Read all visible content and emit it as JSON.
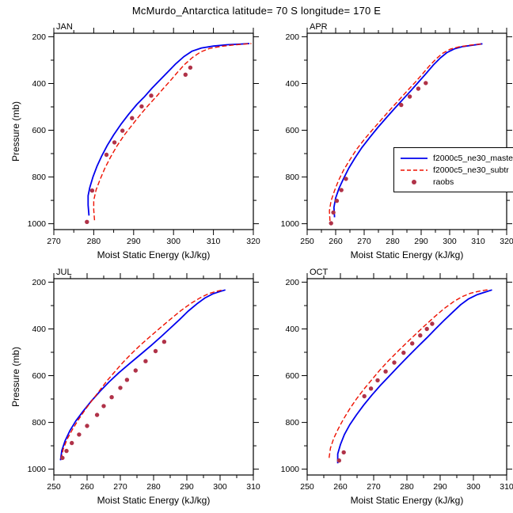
{
  "title": "McMurdo_Antarctica  latitude= 70 S longitude= 170 E",
  "colors": {
    "model_master": "#0000EE",
    "model_subtree": "#EE1100",
    "raobs": "#B03248",
    "axis": "#000000"
  },
  "legend": {
    "entries": [
      {
        "label": "f2000c5_ne30_maste",
        "type": "line",
        "style": "solid",
        "color": "#0000EE"
      },
      {
        "label": "f2000c5_ne30_subtr",
        "type": "line",
        "style": "dashed",
        "color": "#EE1100"
      },
      {
        "label": "raobs",
        "type": "dot",
        "style": "dot",
        "color": "#B03248"
      }
    ]
  },
  "axes": {
    "x_label": "Moist Static Energy (kJ/kg)",
    "y_label": "Pressure (mb)",
    "yticks": [
      200,
      400,
      600,
      800,
      1000
    ],
    "y_minor_step": 100,
    "x_minor_step": 5
  },
  "chart_data": [
    {
      "type": "line",
      "panel": "JAN",
      "xlim": [
        270,
        320
      ],
      "xticks": [
        270,
        280,
        290,
        300,
        310,
        320
      ],
      "series": [
        {
          "name": "f2000c5_ne30_maste",
          "kind": "line",
          "style": "solid",
          "color": "#0000EE",
          "points": [
            [
              278.8,
              965
            ],
            [
              278.6,
              920
            ],
            [
              278.6,
              880
            ],
            [
              279,
              845
            ],
            [
              279.8,
              800
            ],
            [
              280.8,
              755
            ],
            [
              282,
              710
            ],
            [
              283.4,
              665
            ],
            [
              285,
              620
            ],
            [
              286.8,
              575
            ],
            [
              288.8,
              530
            ],
            [
              290.8,
              490
            ],
            [
              292.8,
              455
            ],
            [
              294.6,
              420
            ],
            [
              296.6,
              385
            ],
            [
              298.6,
              350
            ],
            [
              300.6,
              315
            ],
            [
              302.6,
              285
            ],
            [
              304.6,
              262
            ],
            [
              307,
              248
            ],
            [
              310,
              240
            ],
            [
              313.5,
              234
            ],
            [
              317,
              231
            ],
            [
              319,
              229
            ]
          ]
        },
        {
          "name": "f2000c5_ne30_subtr",
          "kind": "line",
          "style": "dashed",
          "color": "#EE1100",
          "points": [
            [
              280.2,
              985
            ],
            [
              280,
              940
            ],
            [
              280,
              900
            ],
            [
              280.6,
              855
            ],
            [
              281.6,
              810
            ],
            [
              282.8,
              762
            ],
            [
              284.2,
              715
            ],
            [
              285.8,
              668
            ],
            [
              287.6,
              622
            ],
            [
              289.6,
              578
            ],
            [
              291.6,
              535
            ],
            [
              293.6,
              495
            ],
            [
              295.6,
              458
            ],
            [
              297.4,
              422
            ],
            [
              299.2,
              388
            ],
            [
              301,
              352
            ],
            [
              302.8,
              318
            ],
            [
              304.8,
              288
            ],
            [
              306.8,
              265
            ],
            [
              309,
              250
            ],
            [
              312,
              241
            ],
            [
              315,
              235
            ],
            [
              318,
              231
            ],
            [
              319.5,
              229
            ]
          ]
        },
        {
          "name": "raobs",
          "kind": "scatter",
          "color": "#B03248",
          "points": [
            [
              278.3,
              992
            ],
            [
              279.6,
              858
            ],
            [
              283.2,
              705
            ],
            [
              285.2,
              652
            ],
            [
              287.2,
              602
            ],
            [
              289.6,
              548
            ],
            [
              292,
              498
            ],
            [
              294.4,
              452
            ],
            [
              303,
              362
            ],
            [
              304.2,
              332
            ]
          ]
        }
      ]
    },
    {
      "type": "line",
      "panel": "APR",
      "xlim": [
        250,
        320
      ],
      "xticks": [
        250,
        260,
        270,
        280,
        290,
        300,
        310,
        320
      ],
      "series": [
        {
          "name": "f2000c5_ne30_maste",
          "kind": "line",
          "style": "solid",
          "color": "#0000EE",
          "points": [
            [
              259.6,
              972
            ],
            [
              259.4,
              930
            ],
            [
              260,
              890
            ],
            [
              261.2,
              848
            ],
            [
              262.8,
              806
            ],
            [
              264.6,
              762
            ],
            [
              266.8,
              718
            ],
            [
              269.2,
              674
            ],
            [
              272,
              630
            ],
            [
              274.8,
              588
            ],
            [
              277.8,
              546
            ],
            [
              280.8,
              505
            ],
            [
              283.8,
              465
            ],
            [
              286.6,
              428
            ],
            [
              289.2,
              392
            ],
            [
              291.8,
              356
            ],
            [
              294.2,
              322
            ],
            [
              296.6,
              292
            ],
            [
              299,
              268
            ],
            [
              301.6,
              252
            ],
            [
              304.6,
              242
            ],
            [
              308,
              236
            ],
            [
              311.5,
              230
            ]
          ]
        },
        {
          "name": "f2000c5_ne30_subtr",
          "kind": "line",
          "style": "dashed",
          "color": "#EE1100",
          "points": [
            [
              258,
              988
            ],
            [
              257.8,
              945
            ],
            [
              258.4,
              902
            ],
            [
              259.6,
              858
            ],
            [
              261,
              815
            ],
            [
              262.8,
              770
            ],
            [
              265,
              726
            ],
            [
              267.4,
              681
            ],
            [
              270.2,
              637
            ],
            [
              273.2,
              594
            ],
            [
              276.2,
              552
            ],
            [
              279.2,
              511
            ],
            [
              282.2,
              471
            ],
            [
              285,
              433
            ],
            [
              287.8,
              396
            ],
            [
              290.4,
              360
            ],
            [
              292.8,
              326
            ],
            [
              295.2,
              295
            ],
            [
              297.6,
              270
            ],
            [
              300.2,
              253
            ],
            [
              303.4,
              243
            ],
            [
              307,
              236
            ],
            [
              311,
              231
            ]
          ]
        },
        {
          "name": "raobs",
          "kind": "scatter",
          "color": "#B03248",
          "points": [
            [
              258.4,
              998
            ],
            [
              259.2,
              952
            ],
            [
              260.4,
              902
            ],
            [
              262,
              856
            ],
            [
              263.6,
              808
            ],
            [
              283,
              492
            ],
            [
              286,
              456
            ],
            [
              289,
              422
            ],
            [
              291.6,
              398
            ]
          ]
        }
      ]
    },
    {
      "type": "line",
      "panel": "JUL",
      "xlim": [
        250,
        310
      ],
      "xticks": [
        250,
        260,
        270,
        280,
        290,
        300,
        310
      ],
      "series": [
        {
          "name": "f2000c5_ne30_maste",
          "kind": "line",
          "style": "solid",
          "color": "#0000EE",
          "points": [
            [
              252,
              962
            ],
            [
              252.4,
              920
            ],
            [
              253.4,
              878
            ],
            [
              254.8,
              836
            ],
            [
              256.6,
              794
            ],
            [
              258.8,
              752
            ],
            [
              261.2,
              710
            ],
            [
              263.8,
              668
            ],
            [
              266.6,
              627
            ],
            [
              269.6,
              587
            ],
            [
              272.8,
              548
            ],
            [
              276,
              510
            ],
            [
              279.2,
              472
            ],
            [
              282.2,
              434
            ],
            [
              285,
              397
            ],
            [
              287.8,
              360
            ],
            [
              290.4,
              324
            ],
            [
              293,
              293
            ],
            [
              295.4,
              268
            ],
            [
              297.8,
              250
            ],
            [
              300,
              240
            ],
            [
              301.6,
              233
            ]
          ]
        },
        {
          "name": "f2000c5_ne30_subtr",
          "kind": "line",
          "style": "dashed",
          "color": "#EE1100",
          "points": [
            [
              252.2,
              958
            ],
            [
              252.8,
              915
            ],
            [
              254,
              872
            ],
            [
              255.6,
              830
            ],
            [
              257.4,
              788
            ],
            [
              259.4,
              746
            ],
            [
              261.6,
              704
            ],
            [
              263.8,
              663
            ],
            [
              266,
              622
            ],
            [
              268.4,
              582
            ],
            [
              270.8,
              543
            ],
            [
              273.4,
              505
            ],
            [
              276.2,
              467
            ],
            [
              279.2,
              430
            ],
            [
              282.2,
              393
            ],
            [
              285.2,
              357
            ],
            [
              288.2,
              322
            ],
            [
              291.2,
              291
            ],
            [
              294,
              267
            ],
            [
              296.6,
              249
            ],
            [
              299,
              239
            ],
            [
              300.8,
              233
            ]
          ]
        },
        {
          "name": "raobs",
          "kind": "scatter",
          "color": "#B03248",
          "points": [
            [
              252.6,
              952
            ],
            [
              253.8,
              922
            ],
            [
              255.4,
              888
            ],
            [
              257.6,
              852
            ],
            [
              260,
              815
            ],
            [
              263,
              768
            ],
            [
              265,
              730
            ],
            [
              267.4,
              692
            ],
            [
              270,
              652
            ],
            [
              272,
              618
            ],
            [
              274.6,
              578
            ],
            [
              277.6,
              538
            ],
            [
              280.6,
              495
            ],
            [
              283.2,
              455
            ]
          ]
        }
      ]
    },
    {
      "type": "line",
      "panel": "OCT",
      "xlim": [
        250,
        310
      ],
      "xticks": [
        250,
        260,
        270,
        280,
        290,
        300,
        310
      ],
      "series": [
        {
          "name": "f2000c5_ne30_maste",
          "kind": "line",
          "style": "solid",
          "color": "#0000EE",
          "points": [
            [
              259.2,
              975
            ],
            [
              259.2,
              935
            ],
            [
              260,
              895
            ],
            [
              261.2,
              852
            ],
            [
              262.8,
              810
            ],
            [
              264.8,
              768
            ],
            [
              267,
              726
            ],
            [
              269.4,
              684
            ],
            [
              272,
              642
            ],
            [
              274.8,
              600
            ],
            [
              277.6,
              558
            ],
            [
              280.4,
              517
            ],
            [
              283.2,
              477
            ],
            [
              286,
              438
            ],
            [
              288.6,
              400
            ],
            [
              291.2,
              363
            ],
            [
              293.8,
              328
            ],
            [
              296.2,
              296
            ],
            [
              298.6,
              271
            ],
            [
              301,
              254
            ],
            [
              303.4,
              243
            ],
            [
              305.6,
              233
            ]
          ]
        },
        {
          "name": "f2000c5_ne30_subtr",
          "kind": "line",
          "style": "dashed",
          "color": "#EE1100",
          "points": [
            [
              256.6,
              952
            ],
            [
              257,
              910
            ],
            [
              258,
              868
            ],
            [
              259.4,
              826
            ],
            [
              261,
              784
            ],
            [
              262.8,
              742
            ],
            [
              264.8,
              700
            ],
            [
              267,
              659
            ],
            [
              269.4,
              618
            ],
            [
              271.8,
              577
            ],
            [
              274.4,
              537
            ],
            [
              277.2,
              497
            ],
            [
              280,
              458
            ],
            [
              282.8,
              420
            ],
            [
              285.6,
              383
            ],
            [
              288.4,
              347
            ],
            [
              291.2,
              313
            ],
            [
              294,
              284
            ],
            [
              296.6,
              262
            ],
            [
              299.2,
              247
            ],
            [
              302,
              238
            ],
            [
              304.8,
              231
            ]
          ]
        },
        {
          "name": "raobs",
          "kind": "scatter",
          "color": "#B03248",
          "points": [
            [
              259.6,
              963
            ],
            [
              261,
              928
            ],
            [
              267.2,
              688
            ],
            [
              269.2,
              655
            ],
            [
              271.2,
              620
            ],
            [
              273.6,
              582
            ],
            [
              276.2,
              544
            ],
            [
              279,
              502
            ],
            [
              281.6,
              462
            ],
            [
              284,
              428
            ],
            [
              286,
              400
            ],
            [
              287.6,
              378
            ]
          ]
        }
      ]
    }
  ]
}
